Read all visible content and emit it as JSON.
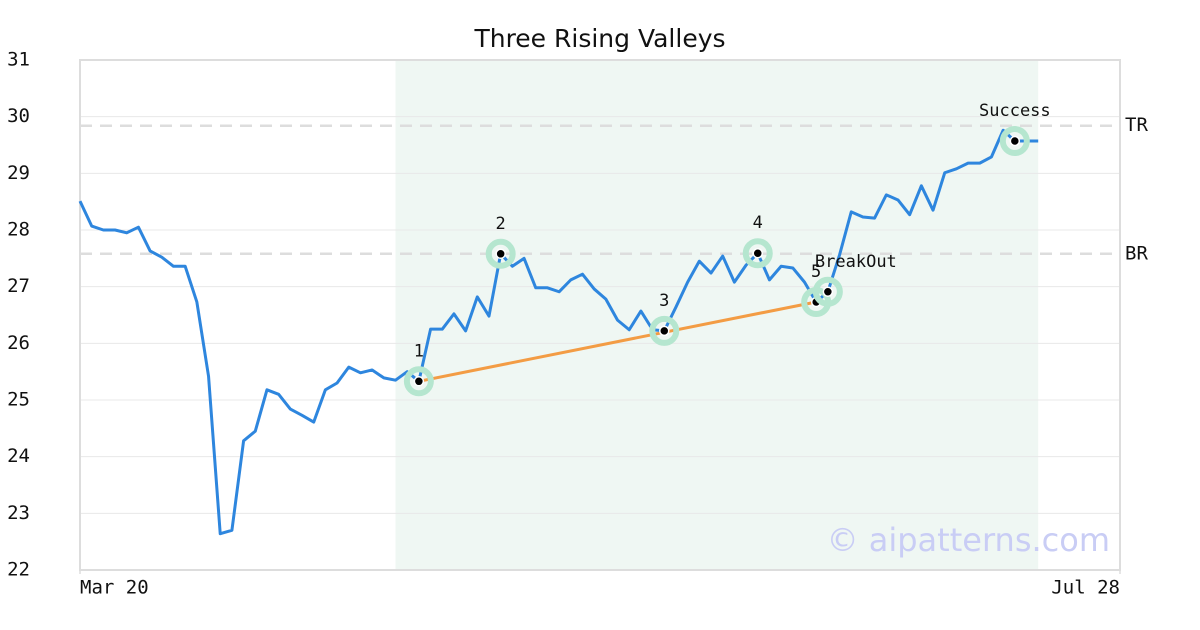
{
  "chart_data": {
    "type": "line",
    "title": "Three Rising Valleys",
    "x": [
      0,
      1,
      2,
      3,
      4,
      5,
      6,
      7,
      8,
      9,
      10,
      11,
      12,
      13,
      14,
      15,
      16,
      17,
      18,
      19,
      20,
      21,
      22,
      23,
      24,
      25,
      26,
      27,
      28,
      29,
      30,
      31,
      32,
      33,
      34,
      35,
      36,
      37,
      38,
      39,
      40,
      41,
      42,
      43,
      44,
      45,
      46,
      47,
      48,
      49,
      50,
      51,
      52,
      53,
      54,
      55,
      56,
      57,
      58,
      59,
      60,
      61,
      62,
      63,
      64,
      65,
      66,
      67,
      68,
      69,
      70,
      71,
      72,
      73,
      74,
      75,
      76,
      77,
      78,
      79,
      80,
      81,
      82
    ],
    "values": [
      28.51,
      28.07,
      28.0,
      28.0,
      27.95,
      28.05,
      27.63,
      27.52,
      27.36,
      27.36,
      26.73,
      25.42,
      22.64,
      22.7,
      24.28,
      24.45,
      25.18,
      25.1,
      24.84,
      24.73,
      24.61,
      25.18,
      25.3,
      25.58,
      25.48,
      25.53,
      25.39,
      25.35,
      25.5,
      25.33,
      26.25,
      26.25,
      26.52,
      26.22,
      26.82,
      26.48,
      27.58,
      27.36,
      27.5,
      26.98,
      26.98,
      26.91,
      27.12,
      27.22,
      26.96,
      26.78,
      26.41,
      26.24,
      26.57,
      26.24,
      26.22,
      26.64,
      27.08,
      27.45,
      27.24,
      27.54,
      27.08,
      27.38,
      27.59,
      27.12,
      27.36,
      27.33,
      27.08,
      26.73,
      26.91,
      27.56,
      28.32,
      28.23,
      28.21,
      28.62,
      28.53,
      28.27,
      28.78,
      28.35,
      29.01,
      29.08,
      29.18,
      29.18,
      29.29,
      29.76,
      29.57,
      29.57,
      29.57
    ],
    "color": "#2e86de",
    "xlim": [
      0,
      89
    ],
    "xticks": [
      {
        "value": 0,
        "label": "Mar 20"
      },
      {
        "value": 89,
        "label": "Jul 28"
      }
    ],
    "ylim": [
      22,
      31
    ],
    "yticks": [
      22,
      23,
      24,
      25,
      26,
      27,
      28,
      29,
      30,
      31
    ],
    "grid": true,
    "highlight": {
      "x": [
        27,
        82
      ],
      "color": "#eff7f3"
    },
    "levels": [
      {
        "label": "TR",
        "value": 29.84
      },
      {
        "label": "BR",
        "value": 27.58
      }
    ],
    "trendline": {
      "x": [
        29,
        63
      ],
      "y": [
        25.33,
        26.73
      ],
      "color": "#f39c44"
    },
    "annotations": [
      {
        "label": "1",
        "x": 29,
        "y": 25.33
      },
      {
        "label": "2",
        "x": 36,
        "y": 27.58
      },
      {
        "label": "3",
        "x": 50,
        "y": 26.22
      },
      {
        "label": "4",
        "x": 58,
        "y": 27.59
      },
      {
        "label": "5",
        "x": 63,
        "y": 26.73
      },
      {
        "label": "BreakOut",
        "x": 64,
        "y": 26.91
      },
      {
        "label": "Success",
        "x": 80,
        "y": 29.57
      }
    ],
    "watermark": "© aipatterns.com"
  }
}
